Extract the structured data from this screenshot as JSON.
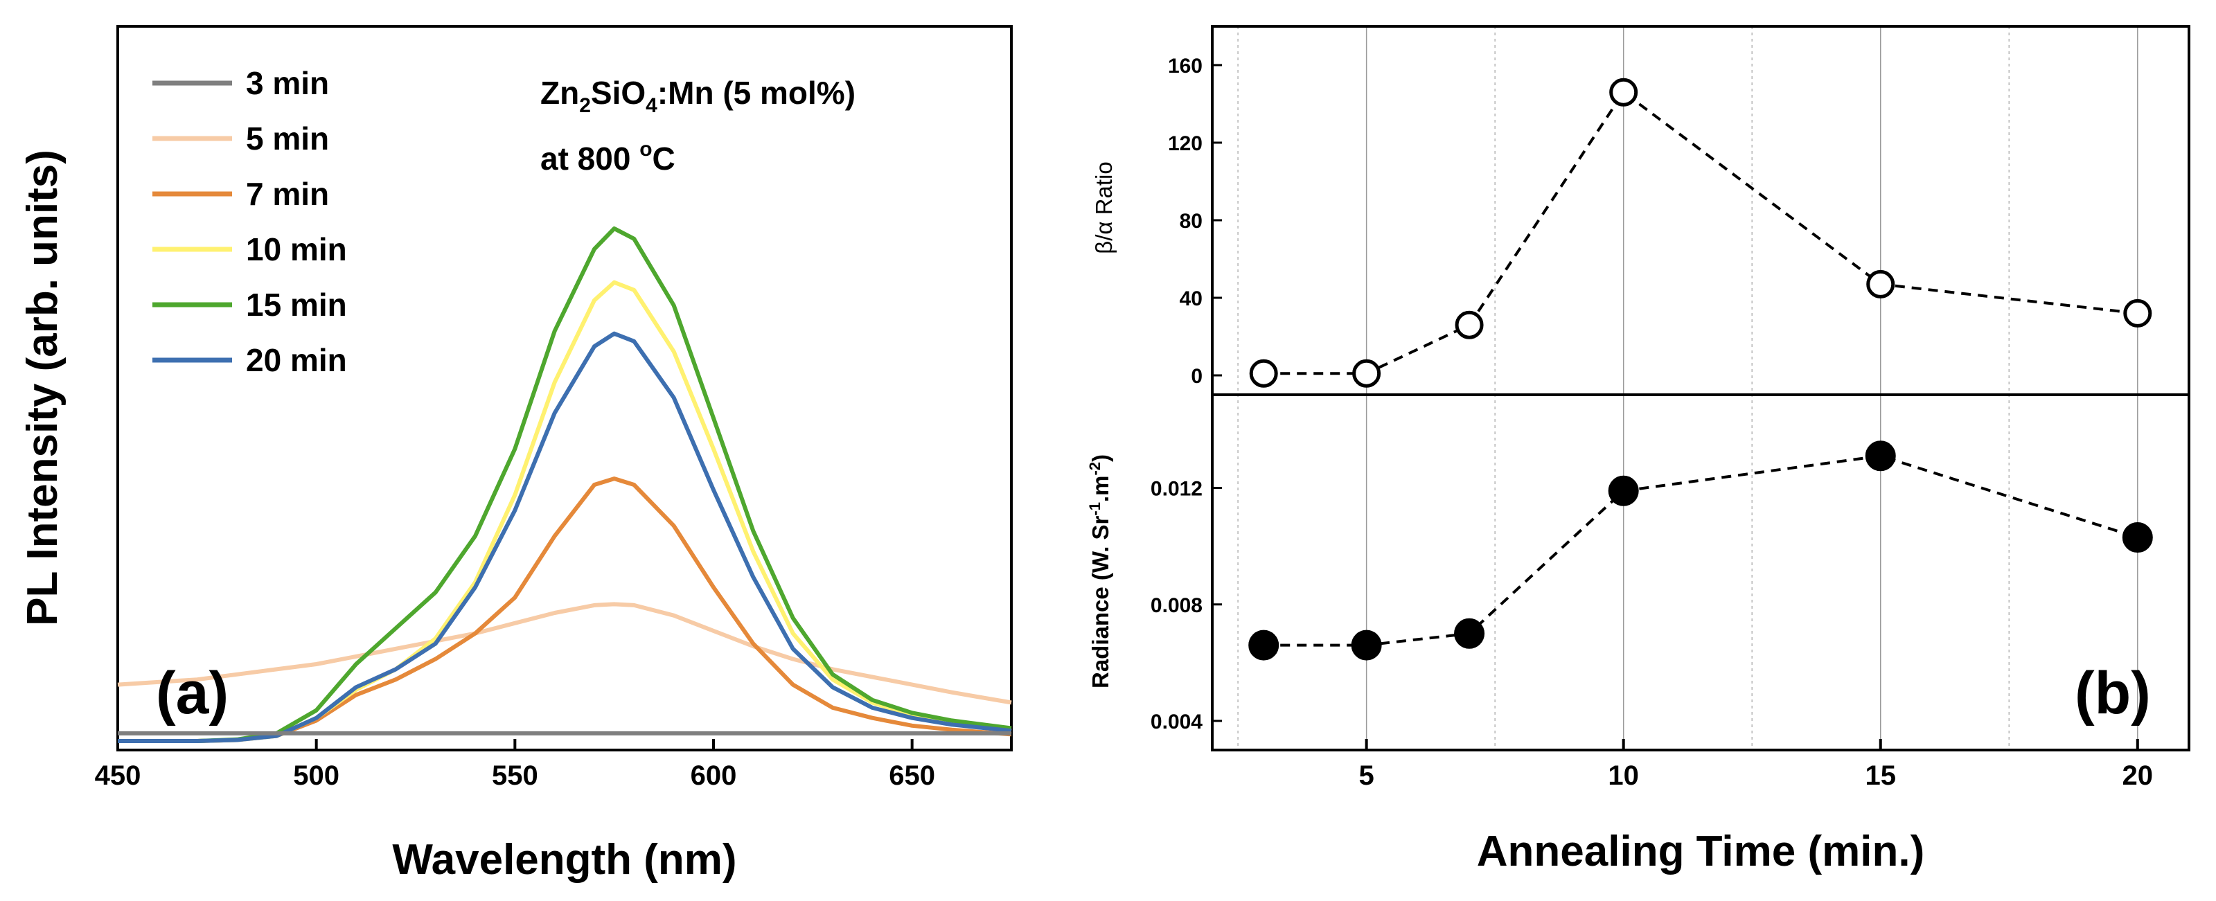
{
  "chart_data": [
    {
      "id": "panel-a",
      "type": "line",
      "panel_label": "(a)",
      "xlabel": "Wavelength (nm)",
      "ylabel": "PL Intensity (arb. units)",
      "xlim": [
        450,
        675
      ],
      "ylim": [
        0,
        100
      ],
      "x_ticks": [
        "450",
        "500",
        "550",
        "600",
        "650"
      ],
      "annotation": {
        "line1_prefix": "Zn",
        "sub1": "2",
        "line1_mid": "SiO",
        "sub2": "4",
        "line1_suffix": ":Mn (5 mol%)",
        "line2_prefix": "at 800 ",
        "line2_sup": "o",
        "line2_suffix": "C"
      },
      "x": [
        450,
        470,
        480,
        490,
        500,
        510,
        520,
        530,
        540,
        550,
        560,
        570,
        575,
        580,
        590,
        600,
        610,
        620,
        630,
        640,
        650,
        660,
        675
      ],
      "series": [
        {
          "name": "3 min",
          "color": "#7f7f7f",
          "values": [
            1.5,
            1.5,
            1.5,
            1.5,
            1.5,
            1.5,
            1.5,
            1.5,
            1.5,
            1.5,
            1.5,
            1.5,
            1.5,
            1.5,
            1.5,
            1.5,
            1.5,
            1.5,
            1.5,
            1.5,
            1.5,
            1.5,
            1.5
          ]
        },
        {
          "name": "5 min",
          "color": "#f7cba6",
          "values": [
            11,
            12,
            13,
            14,
            15,
            16.5,
            18,
            19.5,
            21,
            23,
            25,
            26.5,
            26.7,
            26.5,
            24.5,
            21.5,
            18.5,
            16,
            14,
            12.5,
            11,
            9.5,
            7.5
          ]
        },
        {
          "name": "7 min",
          "color": "#e5893a",
          "values": [
            0,
            0,
            0.2,
            1,
            4,
            9,
            12,
            16,
            21,
            28,
            40,
            50,
            51.2,
            50,
            42,
            30,
            19,
            11,
            6.5,
            4.5,
            3,
            2.2,
            1.3
          ]
        },
        {
          "name": "10 min",
          "color": "#fff170",
          "values": [
            0,
            0,
            0.2,
            1,
            4.5,
            10,
            14,
            20,
            31,
            48,
            70,
            86,
            89.5,
            88,
            76,
            57,
            37,
            21,
            12,
            7.5,
            5,
            3.5,
            2
          ]
        },
        {
          "name": "15 min",
          "color": "#4ea72e",
          "values": [
            0,
            0,
            0.3,
            1.5,
            6,
            15,
            22,
            29,
            40,
            57,
            80,
            96,
            100,
            98,
            85,
            63,
            41,
            24,
            13,
            8,
            5.5,
            4,
            2.5
          ]
        },
        {
          "name": "20 min",
          "color": "#3d6fb0",
          "values": [
            0,
            0,
            0.2,
            1,
            4.5,
            10.5,
            14,
            19,
            30,
            45,
            64,
            77,
            79.5,
            78,
            67,
            49,
            32,
            18,
            10.5,
            6.5,
            4.5,
            3.2,
            2
          ]
        }
      ]
    },
    {
      "id": "panel-b-top",
      "type": "line",
      "ylabel_parts": [
        "β/α",
        " Ratio"
      ],
      "x": [
        3,
        5,
        7,
        10,
        15,
        20
      ],
      "values": [
        1,
        1,
        26,
        146,
        47,
        32
      ],
      "xlim": [
        2,
        21
      ],
      "ylim": [
        -10,
        180
      ],
      "y_ticks": [
        "0",
        "40",
        "80",
        "120",
        "160"
      ],
      "marker": "open-circle"
    },
    {
      "id": "panel-b-bottom",
      "type": "line",
      "panel_label": "(b)",
      "xlabel": "Annealing Time (min.)",
      "ylabel_parts": {
        "prefix": "Radiance (W. Sr",
        "sup1": "-1",
        "mid": ".m",
        "sup2": "-2",
        "suffix": ")"
      },
      "x": [
        3,
        5,
        7,
        10,
        15,
        20
      ],
      "values": [
        0.0066,
        0.0066,
        0.007,
        0.0119,
        0.0131,
        0.0103
      ],
      "xlim": [
        2,
        21
      ],
      "ylim": [
        0.003,
        0.0152
      ],
      "y_ticks": [
        "0.004",
        "0.008",
        "0.012"
      ],
      "x_ticks": [
        "5",
        "10",
        "15",
        "20"
      ],
      "marker": "filled-circle"
    }
  ]
}
